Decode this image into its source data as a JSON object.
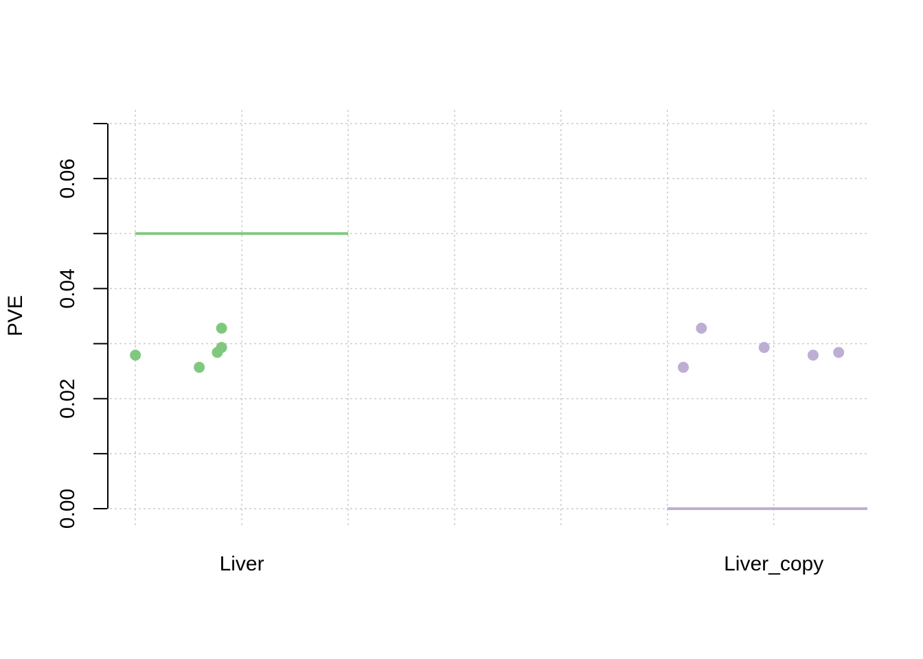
{
  "chart_data": {
    "type": "scatter",
    "y_label": "PVE",
    "xlim": [
      -0.24,
      6.88
    ],
    "ylim": [
      0,
      0.07
    ],
    "yticks": [
      {
        "value": 0,
        "label": "0.00"
      },
      {
        "value": 0.02,
        "label": "0.02"
      },
      {
        "value": 0.04,
        "label": "0.04"
      },
      {
        "value": 0.06,
        "label": "0.06"
      }
    ],
    "yminorticks": [
      0.01,
      0.03,
      0.05,
      0.07
    ],
    "xticks": [
      {
        "value": 1,
        "label": "Liver"
      },
      {
        "value": 6,
        "label": "Liver_copy"
      }
    ],
    "xgrid": [
      0,
      1,
      2,
      3,
      4,
      5,
      6
    ],
    "grid": true,
    "series": [
      {
        "color": "#7fc97f",
        "x": [
          0.0,
          0.6,
          0.77,
          0.81,
          0.81
        ],
        "values": [
          0.0279,
          0.0257,
          0.0284,
          0.0293,
          0.0328
        ]
      },
      {
        "color": "#beaed4",
        "x": [
          5.15,
          5.32,
          5.91,
          6.37,
          6.61
        ],
        "values": [
          0.0257,
          0.0328,
          0.0293,
          0.0279,
          0.0284
        ]
      }
    ],
    "lines": [
      {
        "color": "#7fc97f",
        "x": [
          0,
          2
        ],
        "values": [
          0.05,
          0.05
        ]
      },
      {
        "color": "#beaed4",
        "x": [
          5,
          6.88
        ],
        "values": [
          0,
          0
        ]
      }
    ]
  }
}
